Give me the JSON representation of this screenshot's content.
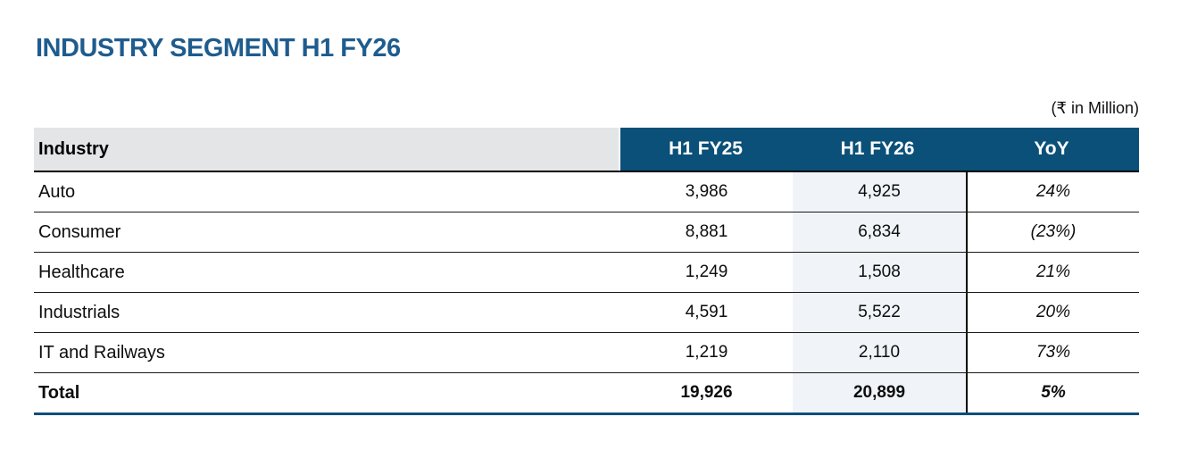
{
  "title": "INDUSTRY SEGMENT H1 FY26",
  "unit_note": "(₹ in Million)",
  "table": {
    "columns": [
      "Industry",
      "H1 FY25",
      "H1 FY26",
      "YoY"
    ],
    "rows": [
      {
        "industry": "Auto",
        "h1_fy25": "3,986",
        "h1_fy26": "4,925",
        "yoy": "24%"
      },
      {
        "industry": "Consumer",
        "h1_fy25": "8,881",
        "h1_fy26": "6,834",
        "yoy": "(23%)"
      },
      {
        "industry": "Healthcare",
        "h1_fy25": "1,249",
        "h1_fy26": "1,508",
        "yoy": "21%"
      },
      {
        "industry": "Industrials",
        "h1_fy25": "4,591",
        "h1_fy26": "5,522",
        "yoy": "20%"
      },
      {
        "industry": "IT and Railways",
        "h1_fy25": "1,219",
        "h1_fy26": "2,110",
        "yoy": "73%"
      }
    ],
    "total": {
      "industry": "Total",
      "h1_fy25": "19,926",
      "h1_fy26": "20,899",
      "yoy": "5%"
    }
  },
  "colors": {
    "title_blue": "#1F5C8E",
    "header_blue": "#0B5078",
    "header_gray": "#E4E5E7",
    "column_shade": "#F0F4F8",
    "bottom_border_blue": "#0E4E7B"
  }
}
